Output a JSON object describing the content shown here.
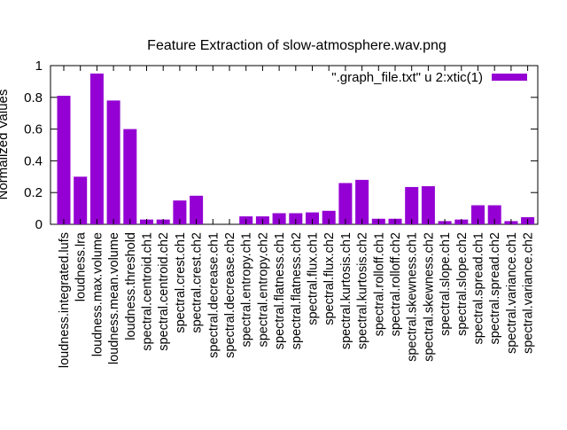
{
  "chart_data": {
    "type": "bar",
    "title": "Feature Extraction of slow-atmosphere.wav.png",
    "ylabel": "Normalized Values",
    "xlabel": "",
    "ylim": [
      0,
      1
    ],
    "yticks": [
      0,
      0.2,
      0.4,
      0.6,
      0.8,
      1
    ],
    "ytick_labels": [
      "0",
      "0.2",
      "0.4",
      "0.6",
      "0.8",
      "1"
    ],
    "legend_position": "top-right",
    "grid": false,
    "series": [
      {
        "name": "\".graph_file.txt\" u 2:xtic(1)",
        "color": "#9400d3",
        "values": [
          0.81,
          0.3,
          0.95,
          0.78,
          0.6,
          0.03,
          0.03,
          0.15,
          0.18,
          0.0,
          0.0,
          0.05,
          0.05,
          0.07,
          0.07,
          0.075,
          0.085,
          0.26,
          0.28,
          0.035,
          0.035,
          0.235,
          0.24,
          0.02,
          0.03,
          0.12,
          0.12,
          0.02,
          0.045
        ]
      }
    ],
    "categories": [
      "loudness.integrated.lufs",
      "loudness.lra",
      "loudness.max.volume",
      "loudness.mean.volume",
      "loudness.threshold",
      "spectral.centroid.ch1",
      "spectral.centroid.ch2",
      "spectral.crest.ch1",
      "spectral.crest.ch2",
      "spectral.decrease.ch1",
      "spectral.decrease.ch2",
      "spectral.entropy.ch1",
      "spectral.entropy.ch2",
      "spectral.flatness.ch1",
      "spectral.flatness.ch2",
      "spectral.flux.ch1",
      "spectral.flux.ch2",
      "spectral.kurtosis.ch1",
      "spectral.kurtosis.ch2",
      "spectral.rolloff.ch1",
      "spectral.rolloff.ch2",
      "spectral.skewness.ch1",
      "spectral.skewness.ch2",
      "spectral.slope.ch1",
      "spectral.slope.ch2",
      "spectral.spread.ch1",
      "spectral.spread.ch2",
      "spectral.variance.ch1",
      "spectral.variance.ch2"
    ]
  }
}
